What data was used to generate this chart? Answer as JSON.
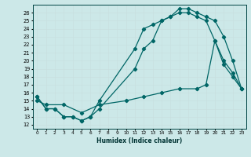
{
  "xlabel": "Humidex (Indice chaleur)",
  "bg_color": "#cce8e8",
  "grid_color": "#b0d8d8",
  "line_color": "#006666",
  "xlim": [
    -0.5,
    23.5
  ],
  "ylim": [
    11.5,
    27.0
  ],
  "yticks": [
    12,
    13,
    14,
    15,
    16,
    17,
    18,
    19,
    20,
    21,
    22,
    23,
    24,
    25,
    26
  ],
  "xticks": [
    0,
    1,
    2,
    3,
    4,
    5,
    6,
    7,
    8,
    9,
    10,
    11,
    12,
    13,
    14,
    15,
    16,
    17,
    18,
    19,
    20,
    21,
    22,
    23
  ],
  "curve_top_x": [
    0,
    1,
    2,
    3,
    4,
    5,
    6,
    7,
    11,
    12,
    13,
    14,
    15,
    16,
    17,
    18,
    19,
    20,
    21,
    22,
    23
  ],
  "curve_top_y": [
    15.5,
    14.0,
    14.0,
    13.0,
    13.0,
    12.5,
    13.0,
    15.0,
    21.5,
    24.0,
    24.5,
    25.0,
    25.5,
    26.5,
    26.5,
    26.0,
    25.5,
    25.0,
    23.0,
    20.0,
    16.5
  ],
  "curve_mid_x": [
    0,
    1,
    2,
    3,
    4,
    5,
    6,
    7,
    11,
    12,
    13,
    14,
    15,
    16,
    17,
    18,
    19,
    20,
    21,
    22,
    23
  ],
  "curve_mid_y": [
    15.5,
    14.0,
    14.0,
    13.0,
    13.0,
    12.5,
    13.0,
    14.0,
    19.0,
    21.5,
    22.5,
    25.0,
    25.5,
    26.0,
    26.0,
    25.5,
    25.0,
    22.5,
    19.5,
    18.0,
    16.5
  ],
  "curve_bot_x": [
    0,
    1,
    3,
    5,
    7,
    10,
    12,
    14,
    16,
    18,
    19,
    20,
    21,
    22,
    23
  ],
  "curve_bot_y": [
    15.0,
    14.5,
    14.5,
    13.5,
    14.5,
    15.0,
    15.5,
    16.0,
    16.5,
    16.5,
    17.0,
    22.5,
    20.0,
    18.5,
    16.5
  ]
}
